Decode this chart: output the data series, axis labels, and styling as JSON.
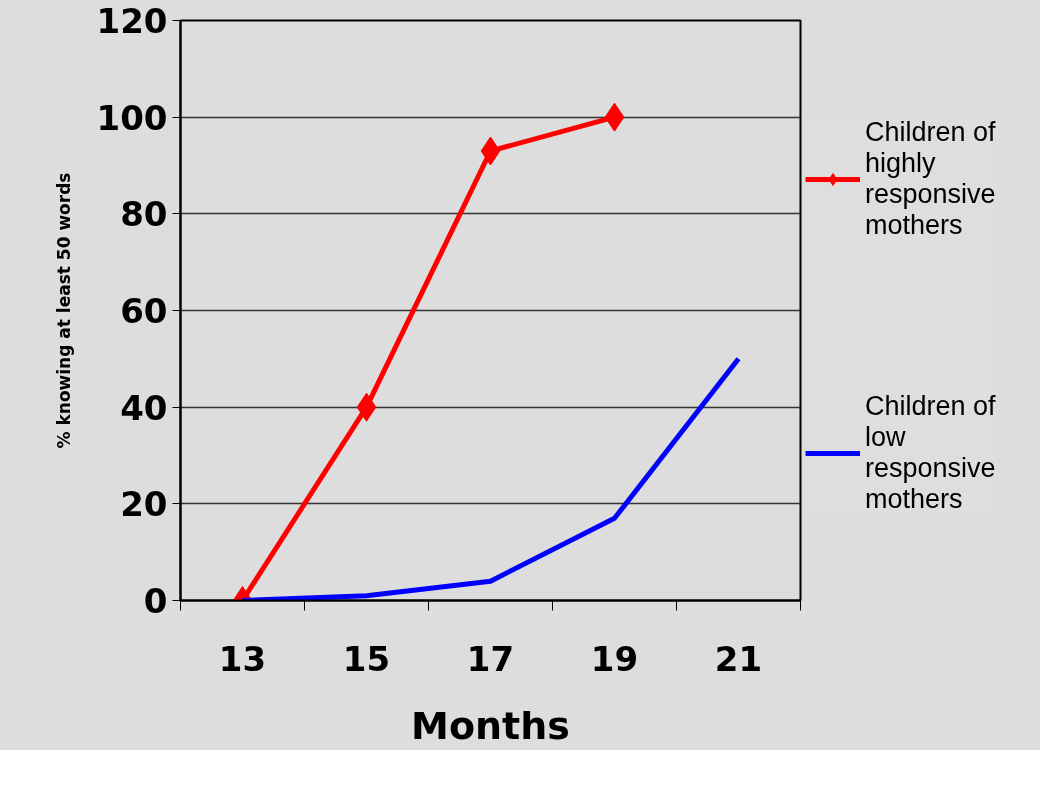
{
  "chart_data": {
    "type": "line",
    "xlabel": "Months",
    "ylabel": "% knowing at least 50 words",
    "categories": [
      "13",
      "15",
      "17",
      "19",
      "21"
    ],
    "series": [
      {
        "name": "Children of\nhighly\nresponsive\nmothers",
        "color": "#ff0000",
        "marker": "diamond",
        "values": [
          0,
          40,
          93,
          100,
          null
        ]
      },
      {
        "name": "Children of\nlow\nresponsive\nmothers",
        "color": "#0000ff",
        "marker": "none",
        "values": [
          0,
          1,
          4,
          17,
          50
        ]
      }
    ],
    "ylim": [
      0,
      120
    ],
    "yticks": [
      0,
      20,
      40,
      60,
      80,
      100,
      120
    ],
    "grid": "y",
    "legend": "right",
    "line_style": "solid"
  }
}
